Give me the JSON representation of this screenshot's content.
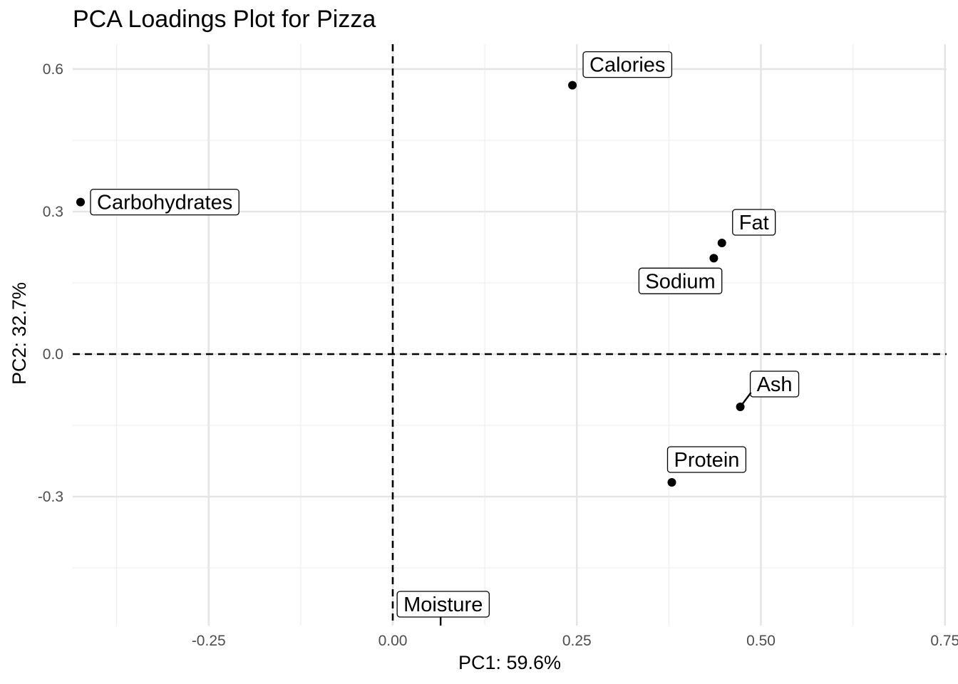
{
  "chart_data": {
    "type": "scatter",
    "title": "PCA Loadings Plot for Pizza",
    "xlabel": "PC1: 59.6%",
    "ylabel": "PC2: 32.7%",
    "xlim": [
      -0.435,
      0.755
    ],
    "ylim": [
      -0.57,
      0.655
    ],
    "x_major_ticks": [
      -0.25,
      0.0,
      0.25,
      0.5,
      0.75
    ],
    "x_tick_labels": [
      "-0.25",
      "0.00",
      "0.25",
      "0.50",
      "0.75"
    ],
    "x_minor_ticks": [
      -0.375,
      -0.125,
      0.125,
      0.375,
      0.625
    ],
    "y_major_ticks": [
      -0.3,
      0.0,
      0.3,
      0.6
    ],
    "y_tick_labels": [
      "-0.3",
      "0.0",
      "0.3",
      "0.6"
    ],
    "y_minor_ticks": [
      -0.45,
      -0.15,
      0.15,
      0.45
    ],
    "reference_lines": {
      "x": 0,
      "y": 0,
      "style": "dashed"
    },
    "grid": true,
    "legend": "none",
    "points": [
      {
        "label": "Calories",
        "x": 0.244,
        "y": 0.566
      },
      {
        "label": "Carbohydrates",
        "x": -0.424,
        "y": 0.32
      },
      {
        "label": "Fat",
        "x": 0.447,
        "y": 0.234
      },
      {
        "label": "Sodium",
        "x": 0.436,
        "y": 0.202
      },
      {
        "label": "Ash",
        "x": 0.472,
        "y": -0.111
      },
      {
        "label": "Protein",
        "x": 0.379,
        "y": -0.27
      },
      {
        "label": "Moisture",
        "x": 0.065,
        "y": -0.64
      }
    ]
  }
}
